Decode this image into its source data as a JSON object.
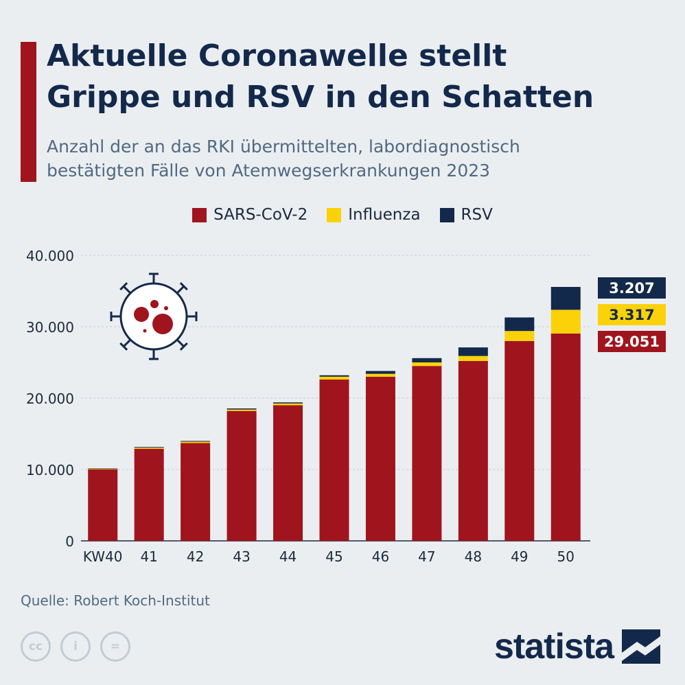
{
  "header": {
    "title": "Aktuelle Coronawelle stellt\nGrippe und RSV in den Schatten",
    "subtitle": "Anzahl der an das RKI übermittelten, labordiagnostisch\nbestätigten Fälle von Atemwegserkrankungen 2023"
  },
  "footer": {
    "source": "Quelle: Robert Koch-Institut",
    "logo_text": "statista",
    "cc_labels": [
      "cc",
      "i",
      "="
    ]
  },
  "icons": [
    "virus-icon",
    "cc-icon",
    "by-icon",
    "nd-icon",
    "statista-logo-icon"
  ],
  "colors": {
    "sars": "#a0141d",
    "influenza": "#fbd20a",
    "rsv": "#13294b",
    "accent": "#a0141d",
    "background": "#ebeef1"
  },
  "chart_data": {
    "type": "bar",
    "stacked": true,
    "categories": [
      "KW40",
      "41",
      "42",
      "43",
      "44",
      "45",
      "46",
      "47",
      "48",
      "49",
      "50"
    ],
    "series": [
      {
        "name": "SARS-CoV-2",
        "color": "#a0141d",
        "values": [
          10000,
          12900,
          13700,
          18200,
          19000,
          22600,
          23000,
          24500,
          25200,
          28000,
          29051
        ]
      },
      {
        "name": "Influenza",
        "color": "#fbd20a",
        "values": [
          100,
          150,
          200,
          200,
          250,
          400,
          400,
          500,
          700,
          1400,
          3317
        ]
      },
      {
        "name": "RSV",
        "color": "#13294b",
        "values": [
          50,
          100,
          100,
          150,
          150,
          200,
          400,
          600,
          1200,
          1900,
          3207
        ]
      }
    ],
    "ylim": [
      0,
      40000
    ],
    "yticks": [
      0,
      10000,
      20000,
      30000,
      40000
    ],
    "ytick_labels": [
      "0",
      "10.000",
      "20.000",
      "30.000",
      "40.000"
    ],
    "xlabel": "",
    "ylabel": "",
    "grid": true,
    "legend_position": "top",
    "annotations": [
      {
        "series": "RSV",
        "label": "3.207"
      },
      {
        "series": "Influenza",
        "label": "3.317"
      },
      {
        "series": "SARS-CoV-2",
        "label": "29.051"
      }
    ]
  }
}
